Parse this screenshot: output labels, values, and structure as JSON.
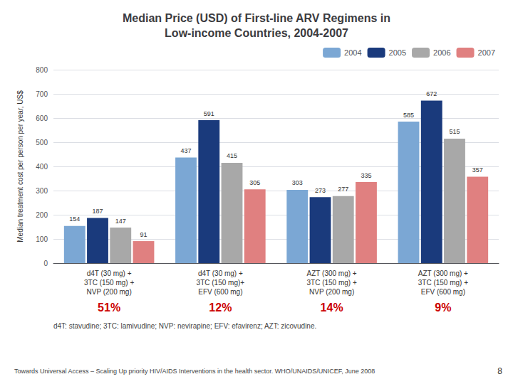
{
  "chart_data": {
    "type": "bar",
    "title": "Median Price (USD) of First-line ARV Regimens in\nLow-income Countries, 2004-2007",
    "categories": [
      "d4T (30 mg) +\n3TC (150 mg) +\nNVP (200 mg)",
      "d4T (30 mg) +\n3TC (150 mg)+\nEFV (600 mg)",
      "AZT (300 mg) +\n3TC (150 mg) +\nNVP (200 mg)",
      "AZT (300 mg) +\n3TC (150 mg) +\nEFV (600 mg)"
    ],
    "series": [
      {
        "name": "2004",
        "color": "#7ba7d4",
        "values": [
          154,
          437,
          303,
          585
        ]
      },
      {
        "name": "2005",
        "color": "#1a3a7c",
        "values": [
          187,
          591,
          273,
          672
        ]
      },
      {
        "name": "2006",
        "color": "#a8a8a8",
        "values": [
          147,
          415,
          277,
          515
        ]
      },
      {
        "name": "2007",
        "color": "#e08080",
        "values": [
          91,
          305,
          335,
          357
        ]
      }
    ],
    "ylabel": "Median treatment cost per person per year, US$",
    "ylim": [
      0,
      800
    ],
    "yticks": [
      0,
      100,
      200,
      300,
      400,
      500,
      600,
      700,
      800
    ],
    "grid": true,
    "legend": "upper right",
    "data_labels": true,
    "annotations": [
      {
        "text": "51%",
        "x": "d4T (30 mg) +\n3TC (150 mg) +\nNVP (200 mg)"
      },
      {
        "text": "12%",
        "x": "d4T (30 mg) +\n3TC (150 mg)+\nEFV (600 mg)"
      },
      {
        "text": "14%",
        "x": "AZT (300 mg) +\n3TC (150 mg) +\nNVP (200 mg)"
      },
      {
        "text": "9%",
        "x": "AZT (300 mg) +\n3TC (150 mg) +\nEFV (600 mg)"
      }
    ],
    "footnote": "d4T: stavudine; 3TC: lamivudine; NVP: nevirapine; EFV: efavirenz; AZT: zicovudine.",
    "source": "Towards Universal Access – Scaling Up priority HIV/AIDS Interventions in the health sector. WHO/UNAIDS/UNICEF, June 2008",
    "page_number": "8"
  }
}
